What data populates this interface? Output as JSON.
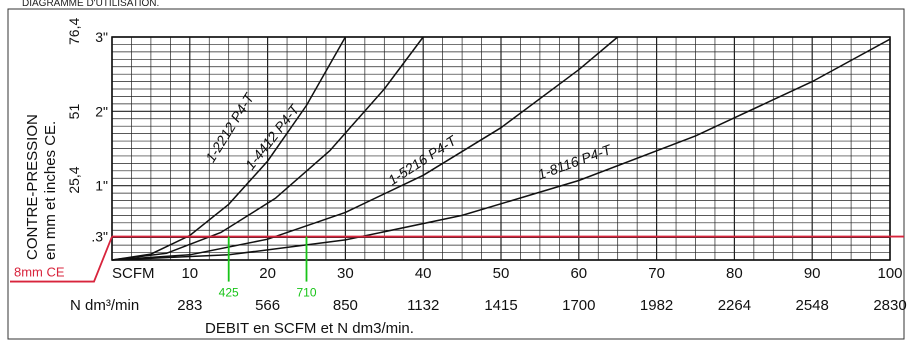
{
  "top_caption": "DIAGRAMME D'UTILISATION.",
  "chart_data": {
    "type": "line",
    "xlabel": "DEBIT en SCFM et N dm3/min.",
    "ylabel": "CONTRE-PRESSION en mm et inches CE.",
    "ylabel_lines": [
      "CONTRE-PRESSION",
      "en mm et inches CE."
    ],
    "xlim": [
      0,
      100
    ],
    "ylim": [
      0,
      3
    ],
    "grid": true,
    "x_scfm_label": "SCFM",
    "x_scfm_ticks": [
      {
        "x": 10,
        "label": "10"
      },
      {
        "x": 20,
        "label": "20"
      },
      {
        "x": 30,
        "label": "30"
      },
      {
        "x": 40,
        "label": "40"
      },
      {
        "x": 50,
        "label": "50"
      },
      {
        "x": 60,
        "label": "60"
      },
      {
        "x": 70,
        "label": "70"
      },
      {
        "x": 80,
        "label": "80"
      },
      {
        "x": 90,
        "label": "90"
      },
      {
        "x": 100,
        "label": "100"
      }
    ],
    "x_ndm_label": "N dm³/min",
    "x_ndm_ticks": [
      {
        "x": 10,
        "label": "283"
      },
      {
        "x": 20,
        "label": "566"
      },
      {
        "x": 30,
        "label": "850"
      },
      {
        "x": 40,
        "label": "1132"
      },
      {
        "x": 50,
        "label": "1415"
      },
      {
        "x": 60,
        "label": "1700"
      },
      {
        "x": 70,
        "label": "1982"
      },
      {
        "x": 80,
        "label": "2264"
      },
      {
        "x": 90,
        "label": "2548"
      },
      {
        "x": 100,
        "label": "2830"
      }
    ],
    "y_inch_ticks": [
      {
        "y": 0.315,
        "label": ".3\""
      },
      {
        "y": 1,
        "label": "1\""
      },
      {
        "y": 2,
        "label": "2\""
      },
      {
        "y": 3,
        "label": "3\""
      }
    ],
    "y_mm_ticks": [
      {
        "y": 1,
        "label": "25,4"
      },
      {
        "y": 2,
        "label": "51"
      },
      {
        "y": 3,
        "label": "76,4"
      }
    ],
    "series": [
      {
        "name": "1-2212 P4-T",
        "x": [
          0,
          5,
          10,
          15,
          20,
          25,
          30
        ],
        "y": [
          0,
          0.08,
          0.33,
          0.75,
          1.33,
          2.08,
          3.0
        ]
      },
      {
        "name": "1-4412 P4-T",
        "x": [
          0,
          7,
          14,
          21,
          28,
          35,
          40
        ],
        "y": [
          0,
          0.09,
          0.37,
          0.83,
          1.47,
          2.3,
          3.0
        ]
      },
      {
        "name": "1-5216 P4-T",
        "x": [
          0,
          10,
          20,
          30,
          40,
          50,
          60,
          65
        ],
        "y": [
          0,
          0.07,
          0.28,
          0.64,
          1.14,
          1.78,
          2.56,
          3.0
        ]
      },
      {
        "name": "1-8116 P4-T",
        "x": [
          0,
          15,
          30,
          45,
          60,
          75,
          90,
          100
        ],
        "y": [
          0,
          0.07,
          0.27,
          0.6,
          1.07,
          1.67,
          2.4,
          2.97
        ]
      }
    ],
    "annotations": [
      {
        "label": "8mm CE",
        "type": "reference-line",
        "y": 0.315,
        "color": "#d8243c"
      },
      {
        "label": "425",
        "type": "marker",
        "x": 15,
        "color": "#18c418"
      },
      {
        "label": "710",
        "type": "marker",
        "x": 25,
        "color": "#18c418"
      }
    ]
  }
}
